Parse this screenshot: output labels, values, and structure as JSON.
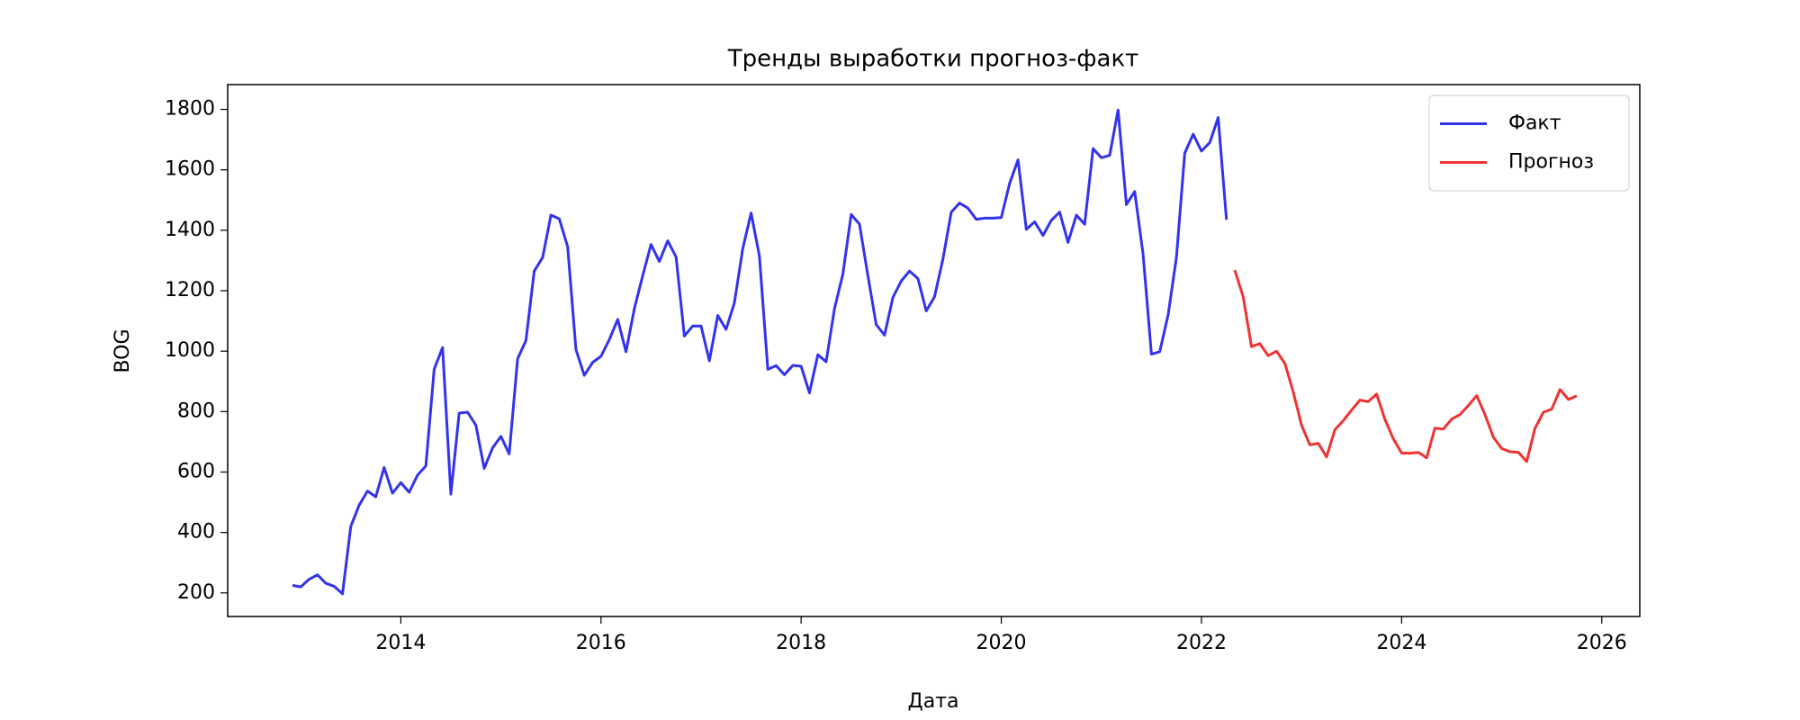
{
  "chart_data": {
    "type": "line",
    "title": "Тренды выработки прогноз-факт",
    "x_label": "Дата",
    "y_label": "BOG",
    "xlim": [
      2012.27,
      2026.38
    ],
    "xticks": [
      2014,
      2016,
      2018,
      2020,
      2022,
      2024,
      2026
    ],
    "ylim": [
      122,
      1882
    ],
    "yticks": [
      200,
      400,
      600,
      800,
      1000,
      1200,
      1400,
      1600,
      1800
    ],
    "legend": "upper right",
    "grid": false,
    "series": [
      {
        "name": "Факт",
        "color": "#3333ee",
        "x": [
          2012.917,
          2013,
          2013.083,
          2013.167,
          2013.25,
          2013.333,
          2013.417,
          2013.5,
          2013.583,
          2013.667,
          2013.75,
          2013.833,
          2013.917,
          2014,
          2014.083,
          2014.167,
          2014.25,
          2014.333,
          2014.417,
          2014.5,
          2014.583,
          2014.667,
          2014.75,
          2014.833,
          2014.917,
          2015,
          2015.083,
          2015.167,
          2015.25,
          2015.333,
          2015.417,
          2015.5,
          2015.583,
          2015.667,
          2015.75,
          2015.833,
          2015.917,
          2016,
          2016.083,
          2016.167,
          2016.25,
          2016.333,
          2016.417,
          2016.5,
          2016.583,
          2016.667,
          2016.75,
          2016.833,
          2016.917,
          2017,
          2017.083,
          2017.167,
          2017.25,
          2017.333,
          2017.417,
          2017.5,
          2017.583,
          2017.667,
          2017.75,
          2017.833,
          2017.917,
          2018,
          2018.083,
          2018.167,
          2018.25,
          2018.333,
          2018.417,
          2018.5,
          2018.583,
          2018.667,
          2018.75,
          2018.833,
          2018.917,
          2019,
          2019.083,
          2019.167,
          2019.25,
          2019.333,
          2019.417,
          2019.5,
          2019.583,
          2019.667,
          2019.75,
          2019.833,
          2019.917,
          2020,
          2020.083,
          2020.167,
          2020.25,
          2020.333,
          2020.417,
          2020.5,
          2020.583,
          2020.667,
          2020.75,
          2020.833,
          2020.917,
          2021,
          2021.083,
          2021.167,
          2021.25,
          2021.333,
          2021.417,
          2021.5,
          2021.583,
          2021.667,
          2021.75,
          2021.833,
          2021.917,
          2022,
          2022.083,
          2022.167,
          2022.25
        ],
        "values": [
          225,
          220,
          245,
          260,
          232,
          222,
          197,
          420,
          490,
          537,
          518,
          615,
          530,
          565,
          533,
          590,
          620,
          940,
          1012,
          527,
          795,
          798,
          755,
          612,
          680,
          718,
          660,
          975,
          1035,
          1265,
          1310,
          1450,
          1438,
          1345,
          1005,
          920,
          963,
          983,
          1038,
          1105,
          998,
          1140,
          1250,
          1353,
          1297,
          1365,
          1312,
          1050,
          1083,
          1083,
          968,
          1118,
          1072,
          1160,
          1340,
          1457,
          1315,
          940,
          952,
          922,
          953,
          950,
          862,
          988,
          965,
          1140,
          1255,
          1452,
          1420,
          1250,
          1088,
          1053,
          1178,
          1232,
          1265,
          1240,
          1133,
          1180,
          1305,
          1460,
          1490,
          1473,
          1436,
          1440,
          1440,
          1442,
          1555,
          1633,
          1403,
          1428,
          1383,
          1433,
          1460,
          1360,
          1450,
          1420,
          1670,
          1640,
          1648,
          1798,
          1485,
          1528,
          1320,
          990,
          998,
          1120,
          1310,
          1655,
          1718,
          1662,
          1690,
          1773,
          1435
        ]
      },
      {
        "name": "Прогноз",
        "color": "#ee3333",
        "x": [
          2022.333,
          2022.417,
          2022.5,
          2022.583,
          2022.667,
          2022.75,
          2022.833,
          2022.917,
          2023,
          2023.083,
          2023.167,
          2023.25,
          2023.333,
          2023.417,
          2023.5,
          2023.583,
          2023.667,
          2023.75,
          2023.833,
          2023.917,
          2024,
          2024.083,
          2024.167,
          2024.25,
          2024.333,
          2024.417,
          2024.5,
          2024.583,
          2024.667,
          2024.75,
          2024.833,
          2024.917,
          2025,
          2025.083,
          2025.167,
          2025.25,
          2025.333,
          2025.417,
          2025.5,
          2025.583,
          2025.667,
          2025.75
        ],
        "values": [
          1268,
          1180,
          1015,
          1025,
          985,
          1000,
          960,
          865,
          755,
          690,
          695,
          650,
          740,
          770,
          805,
          838,
          833,
          858,
          775,
          710,
          663,
          662,
          665,
          647,
          745,
          742,
          775,
          790,
          820,
          853,
          790,
          715,
          678,
          667,
          665,
          635,
          745,
          798,
          808,
          873,
          840,
          852
        ]
      }
    ]
  }
}
